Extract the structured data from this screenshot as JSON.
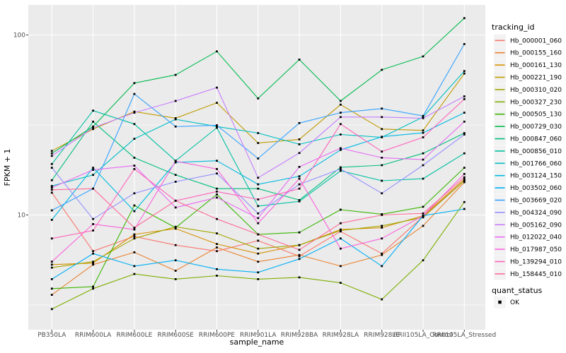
{
  "labels": {
    "y_title": "FPKM + 1",
    "x_title": "sample_name",
    "legend_title": "tracking_id",
    "quant_title": "quant_status",
    "quant_ok_label": "OK",
    "y_tick_top": "100",
    "y_tick_bottom": "10"
  },
  "style": {
    "panel_background": "#EBEBEB",
    "grid_color": "#FFFFFF",
    "tick_text_color": "#4d4d4d",
    "point_color": "#000000",
    "legend_key_background": "#F2F2F2"
  },
  "chart_data": {
    "type": "line",
    "title": "",
    "xlabel": "sample_name",
    "ylabel": "FPKM + 1",
    "y_scale": "log10",
    "y_major_ticks": [
      10,
      100
    ],
    "y_minor_gridlines": [
      3.16,
      31.6
    ],
    "y_range_approx": [
      2.3,
      147
    ],
    "grid": true,
    "legend_position": "right",
    "legend_title": "tracking_id",
    "quant_status_legend": {
      "title": "quant_status",
      "entries": [
        "OK"
      ],
      "marker": "black-square"
    },
    "point_marker": "black-square",
    "categories": [
      "PB350LA",
      "RRIM600LA",
      "RRIM600LE",
      "RRIM600SE",
      "RRIM600PE",
      "RRIM901LA",
      "RRIM928BA",
      "RRIM928LA",
      "RRIM928LE",
      "RRII105LA_Control",
      "RRII105LA_Stressed"
    ],
    "series": [
      {
        "name": "Hb_000001_060",
        "color": "#F8766D",
        "values": [
          13.3,
          6.3,
          7.6,
          6.8,
          6.3,
          7.2,
          5.9,
          8.1,
          6.1,
          9.8,
          15.5
        ]
      },
      {
        "name": "Hb_000155_160",
        "color": "#EA8331",
        "values": [
          3.6,
          5.3,
          6.2,
          4.9,
          6.6,
          5.5,
          6.0,
          5.2,
          6.0,
          8.7,
          15.2
        ]
      },
      {
        "name": "Hb_000161_130",
        "color": "#D89000",
        "values": [
          5.3,
          5.4,
          7.8,
          8.4,
          6.9,
          6.1,
          6.8,
          8.3,
          8.5,
          9.9,
          15.8
        ]
      },
      {
        "name": "Hb_000221_190",
        "color": "#C09B00",
        "values": [
          22.7,
          30.0,
          37.5,
          34.5,
          42.0,
          25.1,
          26.3,
          41.0,
          30.0,
          29.5,
          61.0
        ]
      },
      {
        "name": "Hb_000310_020",
        "color": "#A3A500",
        "values": [
          5.1,
          5.5,
          7.4,
          8.6,
          7.9,
          6.5,
          6.8,
          8.2,
          8.7,
          9.7,
          15.5
        ]
      },
      {
        "name": "Hb_000327_230",
        "color": "#7CAE00",
        "values": [
          3.0,
          3.9,
          4.7,
          4.4,
          4.6,
          4.4,
          4.5,
          4.2,
          3.4,
          5.6,
          11.8
        ]
      },
      {
        "name": "Hb_000505_130",
        "color": "#39B600",
        "values": [
          3.9,
          4.0,
          11.3,
          8.5,
          13.0,
          7.8,
          8.0,
          10.7,
          10.1,
          11.1,
          18.3
        ]
      },
      {
        "name": "Hb_000729_030",
        "color": "#00BB4E",
        "values": [
          22.0,
          31.0,
          54.0,
          60.0,
          81.0,
          44.4,
          73.0,
          43.0,
          64.0,
          76.0,
          124.0
        ]
      },
      {
        "name": "Hb_000847_060",
        "color": "#00BF7D",
        "values": [
          15.6,
          33.0,
          20.8,
          16.7,
          14.0,
          14.0,
          12.1,
          18.4,
          18.9,
          22.0,
          28.5
        ]
      },
      {
        "name": "Hb_000856_010",
        "color": "#00C1A3",
        "values": [
          19.2,
          38.0,
          32.0,
          20.0,
          30.5,
          11.2,
          11.9,
          17.6,
          15.5,
          15.9,
          22.0
        ]
      },
      {
        "name": "Hb_001766_060",
        "color": "#00BFC4",
        "values": [
          14.5,
          16.7,
          26.5,
          34.0,
          31.0,
          28.5,
          24.7,
          28.0,
          27.0,
          35.0,
          63.0
        ]
      },
      {
        "name": "Hb_003124_150",
        "color": "#00BAE0",
        "values": [
          9.4,
          18.3,
          10.5,
          19.6,
          20.0,
          14.8,
          16.4,
          23.0,
          27.2,
          28.6,
          37.0
        ]
      },
      {
        "name": "Hb_003502_060",
        "color": "#00B0F6",
        "values": [
          4.4,
          6.1,
          5.2,
          5.6,
          5.0,
          4.8,
          5.7,
          7.4,
          5.2,
          9.9,
          10.8
        ]
      },
      {
        "name": "Hb_003669_020",
        "color": "#35A2FF",
        "values": [
          10.6,
          14.0,
          47.0,
          31.0,
          31.5,
          20.6,
          32.4,
          37.0,
          39.0,
          35.5,
          89.0
        ]
      },
      {
        "name": "Hb_004324_090",
        "color": "#9590FF",
        "values": [
          18.3,
          9.5,
          13.2,
          15.3,
          17.0,
          10.2,
          14.8,
          18.0,
          13.2,
          18.9,
          28.0
        ]
      },
      {
        "name": "Hb_005162_090",
        "color": "#C77CFF",
        "values": [
          21.3,
          30.5,
          37.0,
          43.0,
          51.0,
          16.1,
          22.1,
          35.0,
          35.0,
          34.5,
          45.6
        ]
      },
      {
        "name": "Hb_012022_040",
        "color": "#E76BF3",
        "values": [
          14.2,
          17.8,
          18.8,
          11.0,
          12.5,
          9.6,
          18.5,
          23.5,
          20.8,
          20.3,
          33.0
        ]
      },
      {
        "name": "Hb_017987_050",
        "color": "#FA62DB",
        "values": [
          5.5,
          8.9,
          8.3,
          19.9,
          18.0,
          9.0,
          15.9,
          6.5,
          7.4,
          9.9,
          16.9
        ]
      },
      {
        "name": "Hb_139294_010",
        "color": "#FF62BC",
        "values": [
          7.4,
          8.2,
          18.0,
          12.0,
          13.5,
          12.2,
          14.0,
          32.0,
          22.5,
          27.0,
          44.0
        ]
      },
      {
        "name": "Hb_158445_010",
        "color": "#FF6A98",
        "values": [
          13.8,
          14.0,
          8.5,
          12.0,
          9.5,
          7.8,
          6.4,
          9.0,
          10.0,
          10.2,
          16.2
        ]
      }
    ]
  }
}
